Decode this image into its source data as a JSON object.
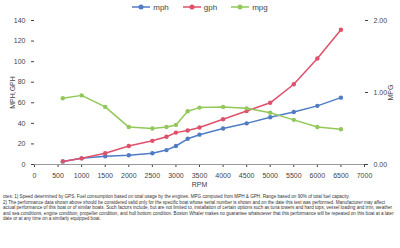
{
  "chart_data": {
    "type": "line",
    "x_label": "RPM",
    "y_label": "MPH,GPH",
    "y2_label": "MPG",
    "x": [
      600,
      1000,
      1500,
      2000,
      2500,
      2800,
      3000,
      3250,
      3500,
      4000,
      4500,
      5000,
      5500,
      6000,
      6500
    ],
    "series": [
      {
        "name": "mph",
        "color": "#4f7cc4",
        "marker": "circle",
        "values": [
          3,
          6,
          8,
          9,
          11,
          14,
          18,
          25,
          29,
          35,
          40,
          46,
          51,
          57,
          65
        ]
      },
      {
        "name": "gph",
        "color": "#e0506a",
        "marker": "circle",
        "values": [
          3,
          6,
          11,
          18,
          23,
          27,
          31,
          33,
          36,
          44,
          52,
          60,
          78,
          103,
          131
        ]
      },
      {
        "name": "mpg",
        "color": "#92c85a",
        "marker": "circle",
        "axis": "y2",
        "values": [
          0.92,
          0.96,
          0.8,
          0.52,
          0.5,
          0.52,
          0.55,
          0.74,
          0.79,
          0.8,
          0.78,
          0.72,
          0.62,
          0.52,
          0.49
        ]
      }
    ],
    "xlim": [
      0,
      7000
    ],
    "xticks": [
      0,
      500,
      1000,
      1500,
      2000,
      2500,
      3000,
      3500,
      4000,
      4500,
      5000,
      5500,
      6000,
      6500,
      7000
    ],
    "ylim": [
      0,
      140
    ],
    "yticks": [
      0,
      20,
      40,
      60,
      80,
      100,
      120,
      140
    ],
    "y2lim": [
      0,
      2
    ],
    "y2ticks": [
      {
        "value": 0,
        "label": "0.00"
      },
      {
        "value": 1,
        "label": "1.00"
      },
      {
        "value": 2,
        "label": "2.00"
      }
    ],
    "grid": false,
    "legend": "top",
    "annotations": [
      "otes: 1) Speed determined by GPS. Fuel consumption based on total usage by the engines. MPG computed from MPH & GPH. Range based on 90% of total fuel capacity.",
      "2) The performance data shown above should be considered valid only for the specific boat whose serial number is shown and on the date this test was performed. Manufacturer may affect actual performance of this boat or of similar boats. Such factors include, but are not limited to, installation of certain options such as tuna towers and hard tops, vessel loading and trim, weather and sea conditions, engine condition, propeller condition, and hull bottom condition. Boston Whaler makes no guarantee whatsoever that this performance will be repeated on this boat at a later date or at any time on a similarly equipped boat."
    ]
  }
}
